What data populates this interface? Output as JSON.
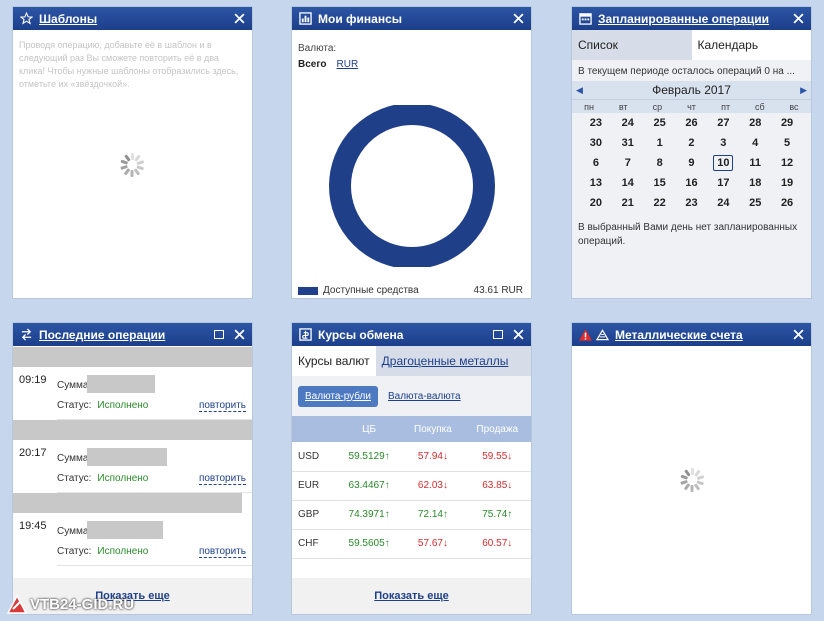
{
  "templates": {
    "title": "Шаблоны",
    "hint": "Проводя операцию, добавьте её в шаблон и в следующий раз Вы сможете повторить её в два клика! Чтобы нужные шаблоны отобразились здесь, отметьте их «звёздочкой»."
  },
  "finances": {
    "title": "Мои финансы",
    "currency_label": "Валюта:",
    "total_label": "Всего",
    "currency": "RUR",
    "legend_label": "Доступные средства",
    "legend_amount": "43.61 RUR",
    "ring_color": "#1f3f88"
  },
  "planned": {
    "title": "Запланированные операции",
    "tabs": [
      "Список",
      "Календарь"
    ],
    "remaining": "В текущем периоде осталось операций 0 на ...",
    "month": "Февраль 2017",
    "weekdays": [
      "пн",
      "вт",
      "ср",
      "чт",
      "пт",
      "сб",
      "вс"
    ],
    "days": [
      "23",
      "24",
      "25",
      "26",
      "27",
      "28",
      "29",
      "30",
      "31",
      "1",
      "2",
      "3",
      "4",
      "5",
      "6",
      "7",
      "8",
      "9",
      "10",
      "11",
      "12",
      "13",
      "14",
      "15",
      "16",
      "17",
      "18",
      "19",
      "20",
      "21",
      "22",
      "23",
      "24",
      "25",
      "26"
    ],
    "today": "10",
    "note": "В выбранный Вами день нет запланированных операций."
  },
  "last_ops": {
    "title": "Последние операции",
    "sum_label": "Сумма",
    "status_label": "Статус:",
    "items": [
      {
        "time": "09:19",
        "status": "Исполнено",
        "repeat": "повторить"
      },
      {
        "time": "20:17",
        "status": "Исполнено",
        "repeat": "повторить"
      },
      {
        "time": "19:45",
        "status": "Исполнено",
        "repeat": "повторить"
      }
    ],
    "more": "Показать еще"
  },
  "rates": {
    "title": "Курсы обмена",
    "tabs": [
      "Курсы валют",
      "Драгоценные металлы"
    ],
    "subtabs": [
      "Валюта-рубли",
      "Валюта-валюта"
    ],
    "headers": [
      "",
      "ЦБ",
      "Покупка",
      "Продажа"
    ],
    "rows": [
      {
        "cur": "USD",
        "cb": "59.5129",
        "cb_dir": "up",
        "buy": "57.94",
        "buy_dir": "dn",
        "sell": "59.55",
        "sell_dir": "dn"
      },
      {
        "cur": "EUR",
        "cb": "63.4467",
        "cb_dir": "up",
        "buy": "62.03",
        "buy_dir": "dn",
        "sell": "63.85",
        "sell_dir": "dn"
      },
      {
        "cur": "GBP",
        "cb": "74.3971",
        "cb_dir": "up",
        "buy": "72.14",
        "buy_dir": "up",
        "sell": "75.74",
        "sell_dir": "up"
      },
      {
        "cur": "CHF",
        "cb": "59.5605",
        "cb_dir": "up",
        "buy": "57.67",
        "buy_dir": "dn",
        "sell": "60.57",
        "sell_dir": "dn"
      }
    ],
    "more": "Показать еще"
  },
  "metals": {
    "title": "Металлические счета"
  },
  "watermark": "VTB24-GID.RU"
}
